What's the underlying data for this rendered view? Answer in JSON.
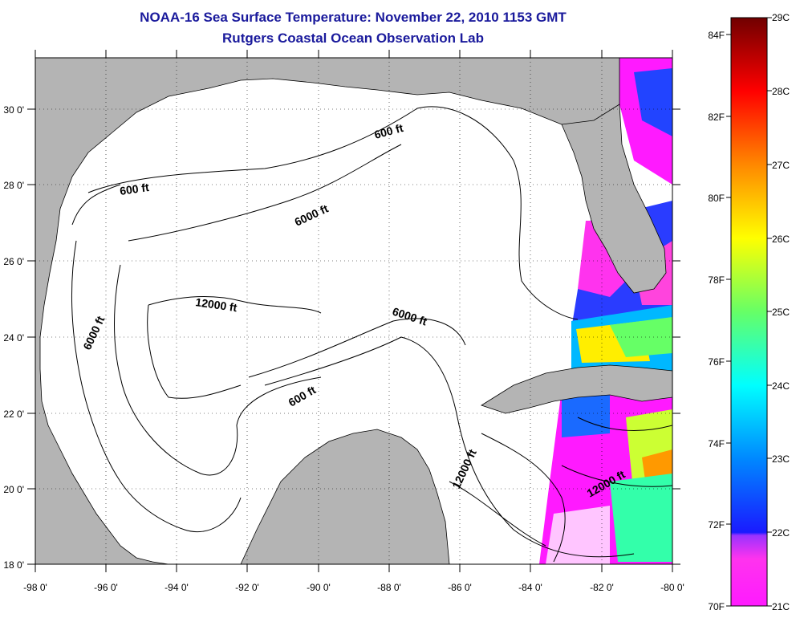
{
  "title": "NOAA-16 Sea Surface Temperature:  November 22, 2010 1153 GMT",
  "subtitle": "Rutgers Coastal Ocean Observation Lab",
  "map": {
    "lon_ticks": [
      "-98 0'",
      "-96 0'",
      "-94 0'",
      "-92 0'",
      "-90 0'",
      "-88 0'",
      "-86 0'",
      "-84 0'",
      "-82 0'",
      "-80 0'"
    ],
    "lat_ticks": [
      "18 0'",
      "20 0'",
      "22 0'",
      "24 0'",
      "26 0'",
      "28 0'",
      "30 0'"
    ],
    "land_color": "#b4b4b4",
    "ocean_color": "#ffffff",
    "contour_labels": {
      "c1": "600 ft",
      "c2": "600 ft",
      "c3": "6000 ft",
      "c4": "12000 ft",
      "c5": "6000 ft",
      "c6": "6000 ft",
      "c7": "600 ft",
      "c8": "12000 ft",
      "c9": "12000 ft"
    }
  },
  "colorbar": {
    "celsius_labels": [
      "29C",
      "28C",
      "27C",
      "26C",
      "25C",
      "24C",
      "23C",
      "22C",
      "21C"
    ],
    "fahrenheit_labels": [
      "84F",
      "82F",
      "80F",
      "78F",
      "76F",
      "74F",
      "72F",
      "70F"
    ],
    "colors": [
      "#ff1aff",
      "#cc33ff",
      "#1a1aff",
      "#0099ff",
      "#00ffff",
      "#33ff66",
      "#ccff33",
      "#ffff00",
      "#ff9900",
      "#ff2200",
      "#cc0000",
      "#7a0000"
    ]
  }
}
